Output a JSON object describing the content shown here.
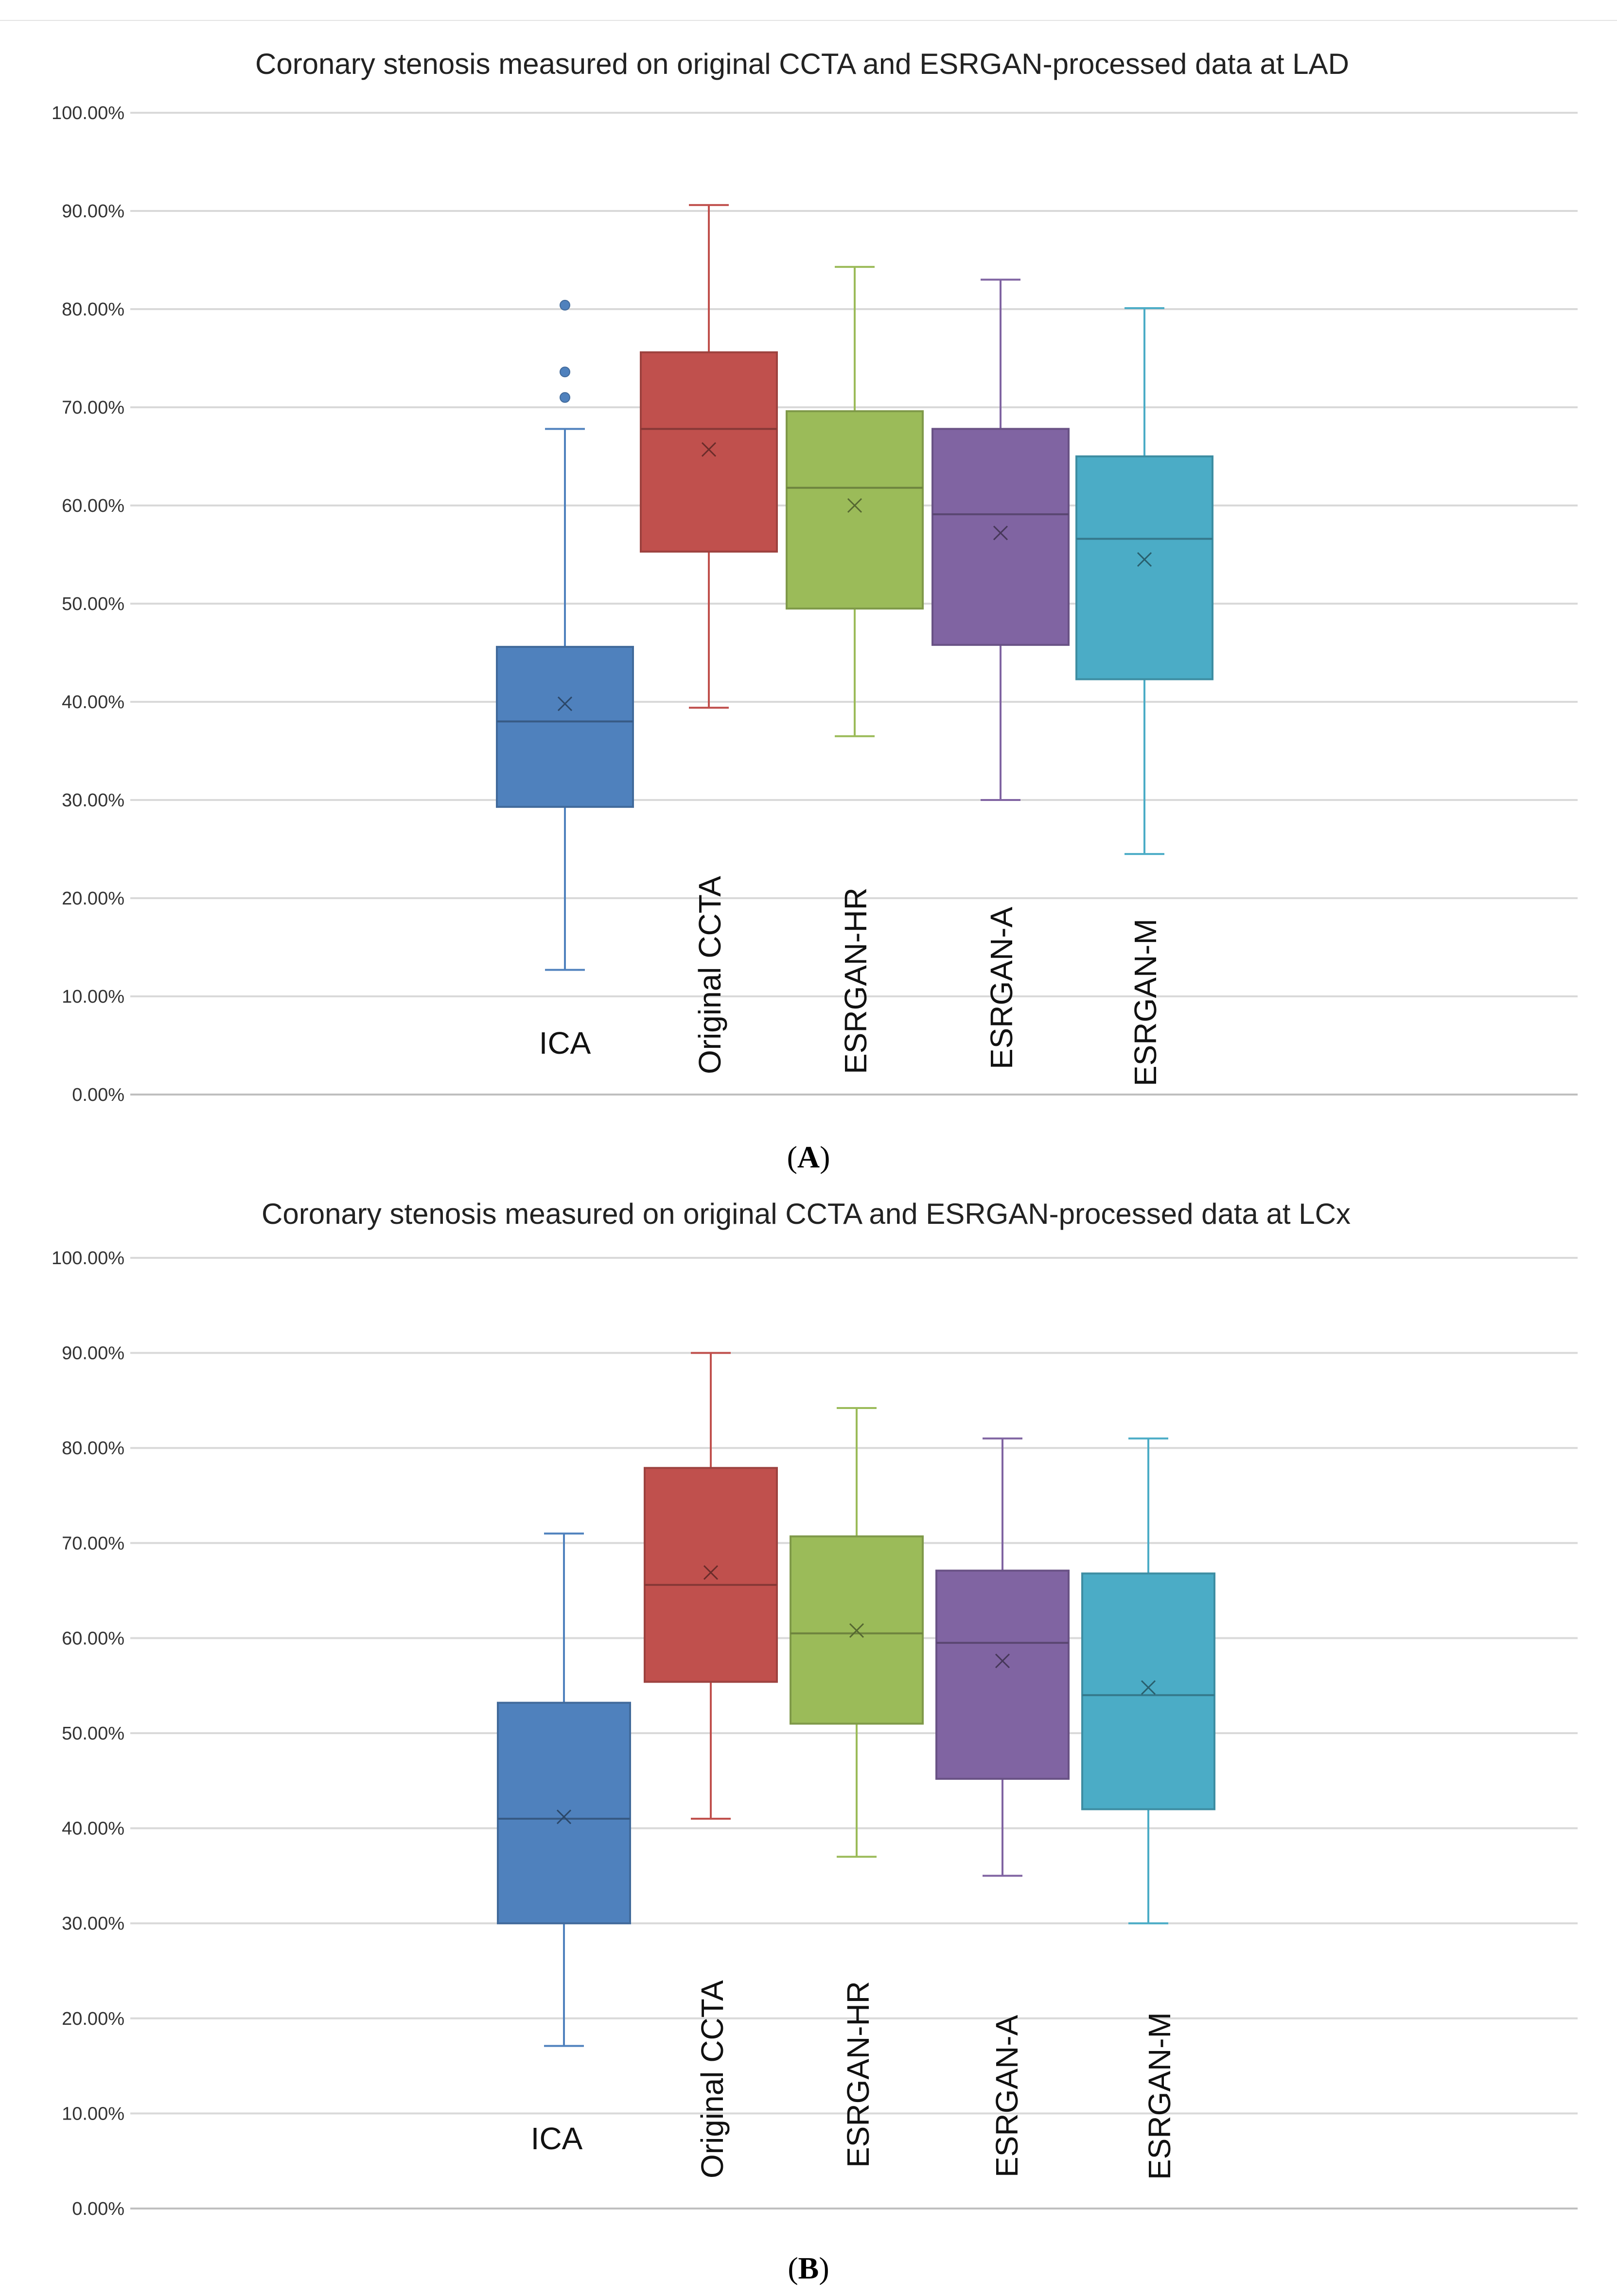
{
  "figure": {
    "panel_labels": [
      "A",
      "B"
    ]
  },
  "chart_data": [
    {
      "type": "boxplot",
      "title": "Coronary stenosis measured on original CCTA and ESRGAN-processed data at LAD",
      "xlabel": "",
      "ylabel": "",
      "ylim": [
        0,
        100
      ],
      "yticks": [
        "0.00%",
        "10.00%",
        "20.00%",
        "30.00%",
        "40.00%",
        "50.00%",
        "60.00%",
        "70.00%",
        "80.00%",
        "90.00%",
        "100.00%"
      ],
      "grid": true,
      "series": [
        {
          "name": "ICA",
          "color": "#4f81bd",
          "min": 12.7,
          "q1": 29.3,
          "median": 38.0,
          "q3": 45.6,
          "max": 67.8,
          "mean": 39.8,
          "outliers": [
            71.0,
            73.6,
            80.4
          ]
        },
        {
          "name": "Original CCTA",
          "color": "#c0504d",
          "min": 39.4,
          "q1": 55.3,
          "median": 67.8,
          "q3": 75.6,
          "max": 90.6,
          "mean": 65.7,
          "outliers": []
        },
        {
          "name": "ESRGAN-HR",
          "color": "#9bbb59",
          "min": 36.5,
          "q1": 49.5,
          "median": 61.8,
          "q3": 69.6,
          "max": 84.3,
          "mean": 60.0,
          "outliers": []
        },
        {
          "name": "ESRGAN-A",
          "color": "#8064a2",
          "min": 30.0,
          "q1": 45.8,
          "median": 59.1,
          "q3": 67.8,
          "max": 83.0,
          "mean": 57.2,
          "outliers": []
        },
        {
          "name": "ESRGAN-M",
          "color": "#4bacc6",
          "min": 24.5,
          "q1": 42.3,
          "median": 56.6,
          "q3": 65.0,
          "max": 80.1,
          "mean": 54.5,
          "outliers": []
        }
      ]
    },
    {
      "type": "boxplot",
      "title": "Coronary stenosis measured on original CCTA and ESRGAN-processed data at LCx",
      "xlabel": "",
      "ylabel": "",
      "ylim": [
        0,
        100
      ],
      "yticks": [
        "0.00%",
        "10.00%",
        "20.00%",
        "30.00%",
        "40.00%",
        "50.00%",
        "60.00%",
        "70.00%",
        "80.00%",
        "90.00%",
        "100.00%"
      ],
      "grid": true,
      "series": [
        {
          "name": "ICA",
          "color": "#4f81bd",
          "min": 17.1,
          "q1": 30.0,
          "median": 41.0,
          "q3": 53.2,
          "max": 71.0,
          "mean": 41.2,
          "outliers": []
        },
        {
          "name": "Original CCTA",
          "color": "#c0504d",
          "min": 41.0,
          "q1": 55.4,
          "median": 65.6,
          "q3": 77.9,
          "max": 90.0,
          "mean": 66.9,
          "outliers": []
        },
        {
          "name": "ESRGAN-HR",
          "color": "#9bbb59",
          "min": 37.0,
          "q1": 51.0,
          "median": 60.5,
          "q3": 70.7,
          "max": 84.2,
          "mean": 60.8,
          "outliers": []
        },
        {
          "name": "ESRGAN-A",
          "color": "#8064a2",
          "min": 35.0,
          "q1": 45.2,
          "median": 59.5,
          "q3": 67.1,
          "max": 81.0,
          "mean": 57.6,
          "outliers": []
        },
        {
          "name": "ESRGAN-M",
          "color": "#4bacc6",
          "min": 30.0,
          "q1": 42.0,
          "median": 54.0,
          "q3": 66.8,
          "max": 81.0,
          "mean": 54.8,
          "outliers": []
        }
      ]
    }
  ]
}
